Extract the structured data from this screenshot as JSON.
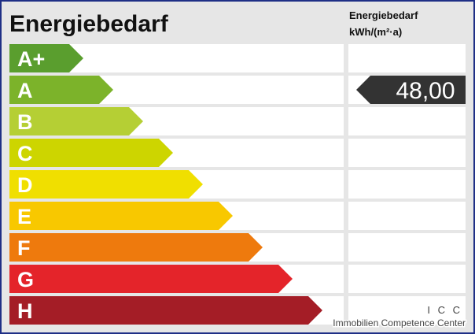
{
  "title": "Energiebedarf",
  "unit_header": {
    "line1": "Energiebedarf",
    "line2": "kWh/(m²·a)"
  },
  "classes": [
    "A+",
    "A",
    "B",
    "C",
    "D",
    "E",
    "F",
    "G",
    "H"
  ],
  "value": {
    "label": "48,00"
  },
  "footer": {
    "line1": "I C C",
    "line2": "Immobilien Competence Center"
  }
}
